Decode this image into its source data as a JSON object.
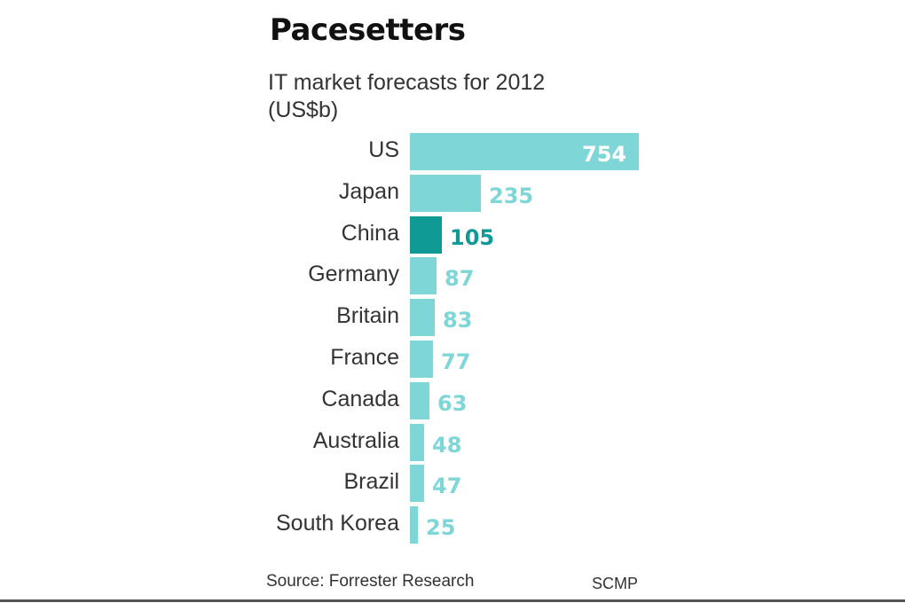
{
  "chart_data": {
    "type": "bar",
    "orientation": "horizontal",
    "title": "Pacesetters",
    "subtitle": "IT market forecasts for 2012 (US$b)",
    "categories": [
      "US",
      "Japan",
      "China",
      "Germany",
      "Britain",
      "France",
      "Canada",
      "Australia",
      "Brazil",
      "South Korea"
    ],
    "values": [
      754,
      235,
      105,
      87,
      83,
      77,
      63,
      48,
      47,
      25
    ],
    "highlight": "China",
    "colors": {
      "bar": "#7fd6d6",
      "highlight": "#0f9a96",
      "value_in_bar": "#ffffff"
    },
    "xlabel": "",
    "ylabel": "",
    "source": "Source: Forrester Research",
    "credit": "SCMP"
  },
  "title": "Pacesetters",
  "subtitle_line1": "IT market forecasts for 2012",
  "subtitle_line2": "(US$b)",
  "source": "Source: Forrester Research",
  "credit": "SCMP"
}
